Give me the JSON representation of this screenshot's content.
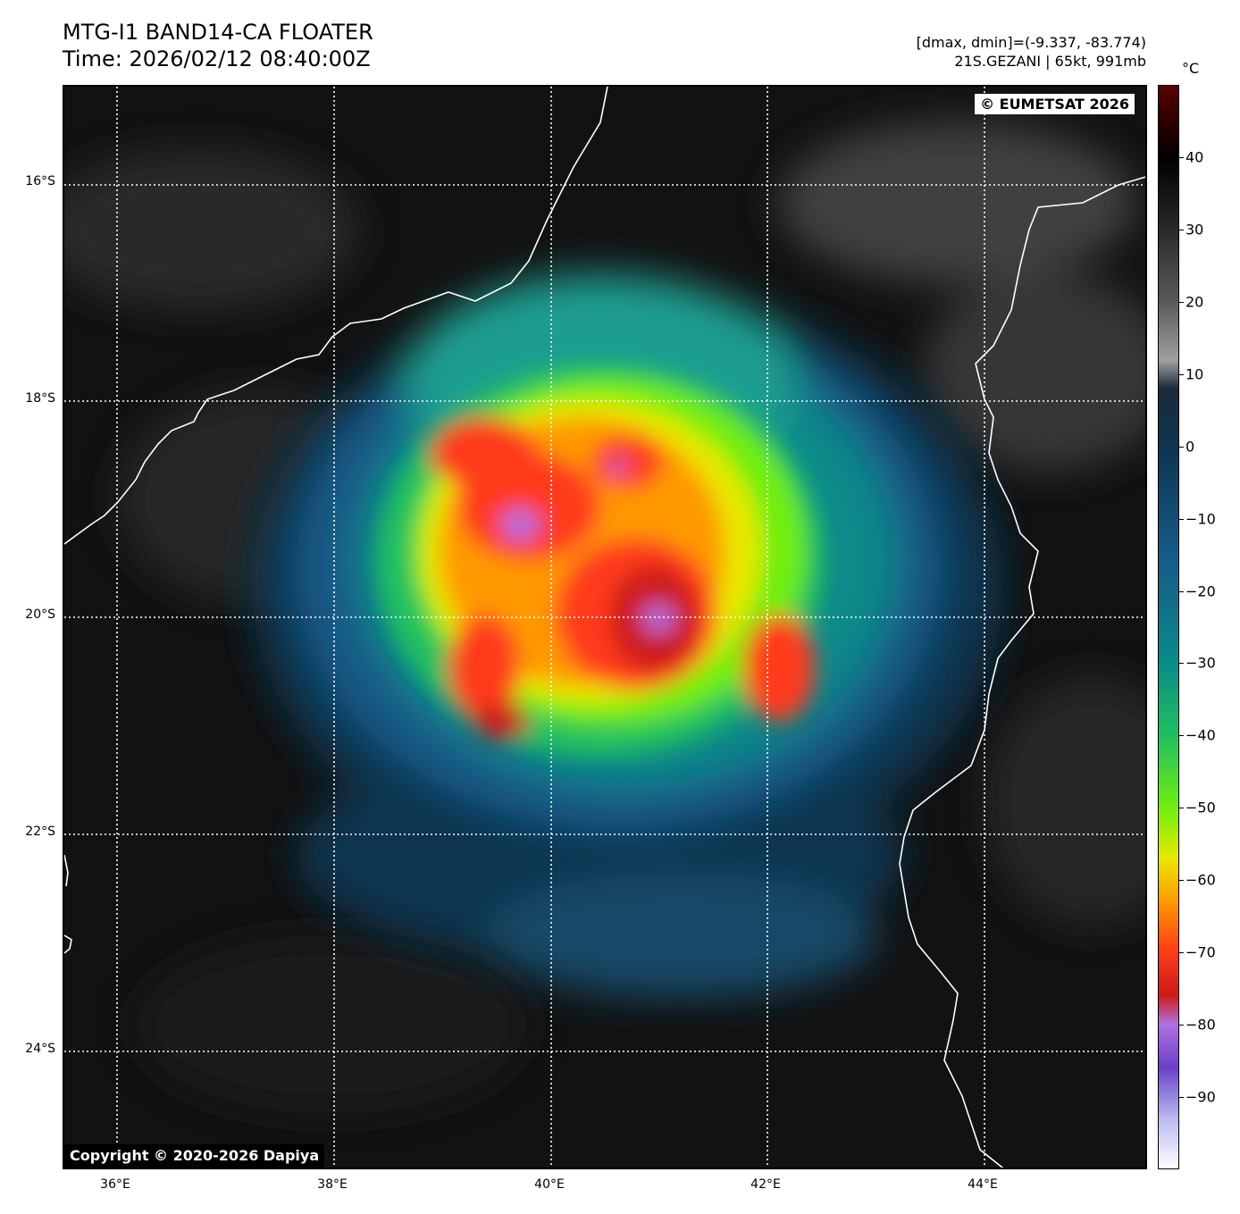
{
  "title_line1": "MTG-I1 BAND14-CA FLOATER",
  "title_line2": "Time: 2026/02/12 08:40:00Z",
  "range_text": "[dmax, dmin]=(-9.337, -83.774)",
  "storm_text": "21S.GEZANI | 65kt, 991mb",
  "unit_label": "°C",
  "eumetsat_label": "© EUMETSAT 2026",
  "copyright_label": "Copyright © 2020-2026 Dapiya",
  "lat_labels": [
    "16°S",
    "18°S",
    "20°S",
    "22°S",
    "24°S"
  ],
  "lon_labels": [
    "36°E",
    "38°E",
    "40°E",
    "42°E",
    "44°E"
  ],
  "colorbar": {
    "ticks": [
      "40",
      "30",
      "20",
      "10",
      "0",
      "−10",
      "−20",
      "−30",
      "−40",
      "−50",
      "−60",
      "−70",
      "−80",
      "−90"
    ],
    "tick_values": [
      40,
      30,
      20,
      10,
      0,
      -10,
      -20,
      -30,
      -40,
      -50,
      -60,
      -70,
      -80,
      -90
    ],
    "min": -100,
    "max": 50,
    "colors": {
      "50": "#5a0000",
      "40": "#000000",
      "30": "#2a2a2a",
      "20": "#5a5a5a",
      "12": "#a0a0a0",
      "8": "#1a2a3a",
      "0": "#0d3550",
      "-15": "#175a88",
      "-30": "#0a8a8a",
      "-40": "#20c060",
      "-50": "#70ee10",
      "-57": "#e8e800",
      "-63": "#ff9900",
      "-70": "#ff3b1a",
      "-76": "#cc1a1a",
      "-80": "#b070e0",
      "-86": "#6a40c8",
      "-93": "#b8b8ee",
      "-100": "#ffffff"
    }
  }
}
